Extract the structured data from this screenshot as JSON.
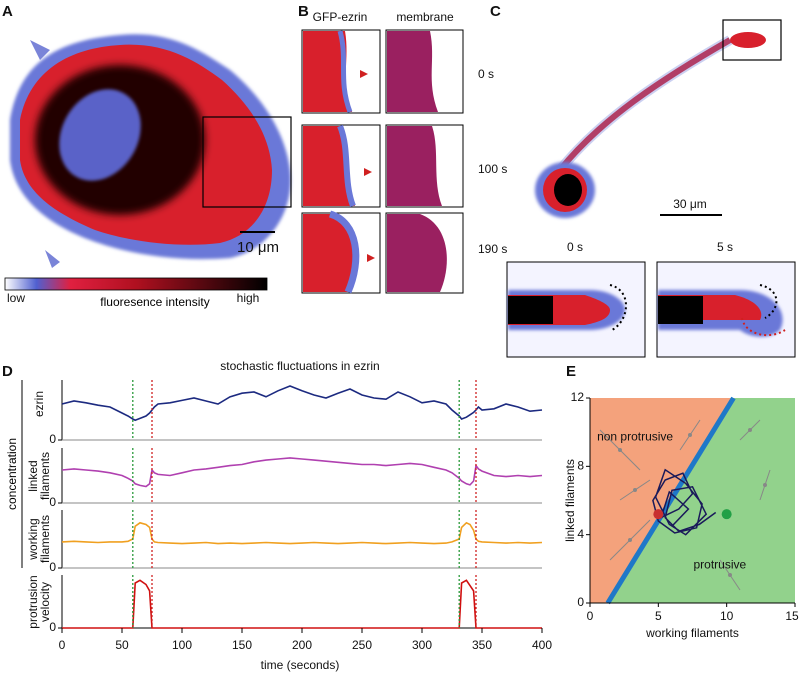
{
  "panels": {
    "a": {
      "label": "A",
      "scale_bar": "10 μm",
      "colorbar": {
        "low": "low",
        "title": "fluoresence intensity",
        "high": "high"
      }
    },
    "b": {
      "label": "B",
      "columns": [
        "GFP-ezrin",
        "membrane"
      ],
      "times": [
        "0 s",
        "100 s",
        "190 s"
      ]
    },
    "c": {
      "label": "C",
      "scale_bar": "30 μm",
      "times": [
        "0 s",
        "5 s"
      ]
    },
    "d": {
      "label": "D"
    },
    "e": {
      "label": "E"
    }
  },
  "chart_data": [
    {
      "type": "line",
      "title": "stochastic fluctuations in ezrin",
      "group_label": "concentration",
      "x_label": "time (seconds)",
      "x": [
        0,
        10,
        20,
        30,
        40,
        50,
        55,
        59,
        61,
        65,
        70,
        73,
        75,
        77,
        80,
        90,
        100,
        110,
        120,
        130,
        140,
        150,
        160,
        170,
        180,
        190,
        200,
        210,
        220,
        230,
        240,
        250,
        260,
        270,
        280,
        290,
        300,
        310,
        320,
        325,
        331,
        333,
        337,
        340,
        343,
        345,
        347,
        350,
        360,
        370,
        380,
        390,
        400
      ],
      "xlim": [
        0,
        400
      ],
      "xticks": [
        0,
        50,
        100,
        150,
        200,
        250,
        300,
        350,
        400
      ],
      "events": [
        {
          "x": 59,
          "color": "#2a9a3a"
        },
        {
          "x": 75,
          "color": "#d02020"
        },
        {
          "x": 331,
          "color": "#2a9a3a"
        },
        {
          "x": 345,
          "color": "#d02020"
        }
      ],
      "series": [
        {
          "name": "ezrin",
          "color": "#1c2a80",
          "ylim": [
            0,
            1
          ],
          "yticks": [
            0
          ],
          "values": [
            0.6,
            0.65,
            0.62,
            0.58,
            0.55,
            0.45,
            0.4,
            0.35,
            0.33,
            0.36,
            0.4,
            0.45,
            0.5,
            0.55,
            0.6,
            0.62,
            0.66,
            0.7,
            0.65,
            0.6,
            0.72,
            0.78,
            0.8,
            0.72,
            0.82,
            0.9,
            0.82,
            0.75,
            0.7,
            0.78,
            0.85,
            0.75,
            0.7,
            0.68,
            0.8,
            0.72,
            0.62,
            0.65,
            0.6,
            0.5,
            0.4,
            0.35,
            0.38,
            0.42,
            0.46,
            0.5,
            0.55,
            0.5,
            0.52,
            0.6,
            0.55,
            0.48,
            0.5
          ]
        },
        {
          "name": "linked filaments",
          "color": "#b040b0",
          "ylim": [
            0,
            1
          ],
          "yticks": [
            0
          ],
          "values": [
            0.6,
            0.62,
            0.6,
            0.58,
            0.55,
            0.5,
            0.45,
            0.4,
            0.35,
            0.32,
            0.3,
            0.35,
            0.6,
            0.55,
            0.52,
            0.5,
            0.55,
            0.6,
            0.62,
            0.65,
            0.68,
            0.7,
            0.75,
            0.78,
            0.8,
            0.82,
            0.8,
            0.78,
            0.76,
            0.74,
            0.72,
            0.7,
            0.7,
            0.68,
            0.7,
            0.72,
            0.7,
            0.65,
            0.6,
            0.55,
            0.45,
            0.4,
            0.35,
            0.33,
            0.4,
            0.68,
            0.62,
            0.58,
            0.5,
            0.48,
            0.5,
            0.48,
            0.5
          ]
        },
        {
          "name": "working filaments",
          "color": "#f0a020",
          "ylim": [
            0,
            1
          ],
          "yticks": [
            0
          ],
          "values": [
            0.45,
            0.46,
            0.45,
            0.44,
            0.45,
            0.45,
            0.46,
            0.5,
            0.72,
            0.78,
            0.75,
            0.7,
            0.5,
            0.45,
            0.44,
            0.43,
            0.42,
            0.43,
            0.44,
            0.42,
            0.43,
            0.42,
            0.43,
            0.44,
            0.43,
            0.42,
            0.43,
            0.44,
            0.43,
            0.42,
            0.43,
            0.44,
            0.43,
            0.42,
            0.43,
            0.44,
            0.43,
            0.42,
            0.43,
            0.45,
            0.5,
            0.7,
            0.78,
            0.75,
            0.65,
            0.5,
            0.46,
            0.45,
            0.44,
            0.43,
            0.44,
            0.43,
            0.44
          ]
        },
        {
          "name": "protrusion velocity",
          "color": "#d01010",
          "ylim": [
            0,
            1
          ],
          "yticks": [
            0
          ],
          "values": [
            0,
            0,
            0,
            0,
            0,
            0,
            0,
            0,
            0.85,
            0.9,
            0.82,
            0.7,
            0,
            0,
            0,
            0,
            0,
            0,
            0,
            0,
            0,
            0,
            0,
            0,
            0,
            0,
            0,
            0,
            0,
            0,
            0,
            0,
            0,
            0,
            0,
            0,
            0,
            0,
            0,
            0,
            0,
            0.85,
            0.9,
            0.8,
            0.7,
            0,
            0,
            0,
            0,
            0,
            0,
            0,
            0
          ]
        }
      ]
    },
    {
      "type": "phase",
      "x_label": "working filaments",
      "y_label": "linked filaments",
      "xlim": [
        0,
        15
      ],
      "ylim": [
        0,
        12
      ],
      "xticks": [
        0,
        5,
        10,
        15
      ],
      "yticks": [
        0,
        4,
        8,
        12
      ],
      "regions": [
        {
          "name": "non protrusive",
          "color": "#f4a27c"
        },
        {
          "name": "protrusive",
          "color": "#92d28c"
        }
      ],
      "boundary": {
        "x": [
          1.3,
          10.5
        ],
        "y": [
          0,
          12
        ],
        "color": "#1f78c8"
      },
      "trajectory": {
        "color": "#1a1a5a",
        "x": [
          9.2,
          8,
          6.5,
          5.5,
          6,
          7.5,
          8.5,
          7,
          5.8,
          4.8,
          5.5,
          7,
          8.2,
          7.8,
          6.2,
          5,
          4.6,
          5.5,
          6.8,
          7.5,
          6.5,
          5.2,
          5.8,
          7.2,
          6
        ],
        "y": [
          5.3,
          4.6,
          4.2,
          5,
          6.6,
          6.8,
          5.2,
          4,
          4.6,
          6.2,
          7.8,
          7,
          5.8,
          4.4,
          4.1,
          4.8,
          6,
          7.2,
          7.6,
          6.4,
          5.5,
          5,
          6.5,
          5.5,
          4.5
        ]
      },
      "points": [
        {
          "x": 5,
          "y": 5.2,
          "color": "#c83030"
        },
        {
          "x": 10,
          "y": 5.2,
          "color": "#22a046"
        }
      ]
    }
  ]
}
